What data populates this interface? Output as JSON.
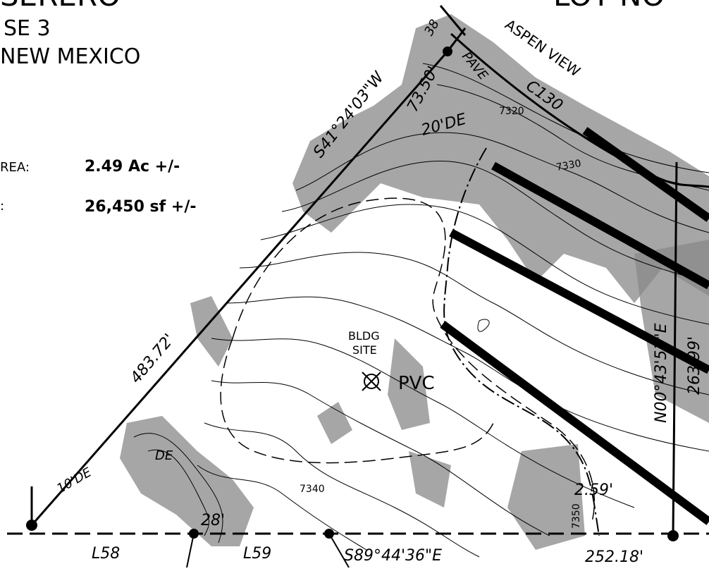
{
  "title": {
    "name": "SERERO",
    "phase": "SE 3",
    "state": "NEW MEXICO",
    "lot": "LOT NO"
  },
  "areas": {
    "acre_label": "REA:",
    "acre_value": "2.49 Ac +/-",
    "sf_label": ":",
    "sf_value": "26,450 sf +/-"
  },
  "labels": {
    "road": "ASPEN VIEW",
    "bldg": "BLDG",
    "site": "SITE",
    "pvc": "PVC",
    "contours": [
      "7320",
      "7330",
      "7340",
      "7350"
    ],
    "bearing_nw": "S41°24'03\"W",
    "dist_nw": "483.72'",
    "dist_top": "73.50'",
    "easement_top": "20'DE",
    "easement_left": "DE",
    "easement_left2": "10'DE",
    "curve": "C130",
    "pave": "PAVE",
    "num38": "38",
    "bearing_s": "S89°44'36\"E",
    "dist_s": "252.18'",
    "l58": "L58",
    "l59": "L59",
    "dist_28": "28'",
    "dist_259": "2.59'",
    "bearing_e": "N00°43'53\"E",
    "dist_e": "263.99'"
  }
}
